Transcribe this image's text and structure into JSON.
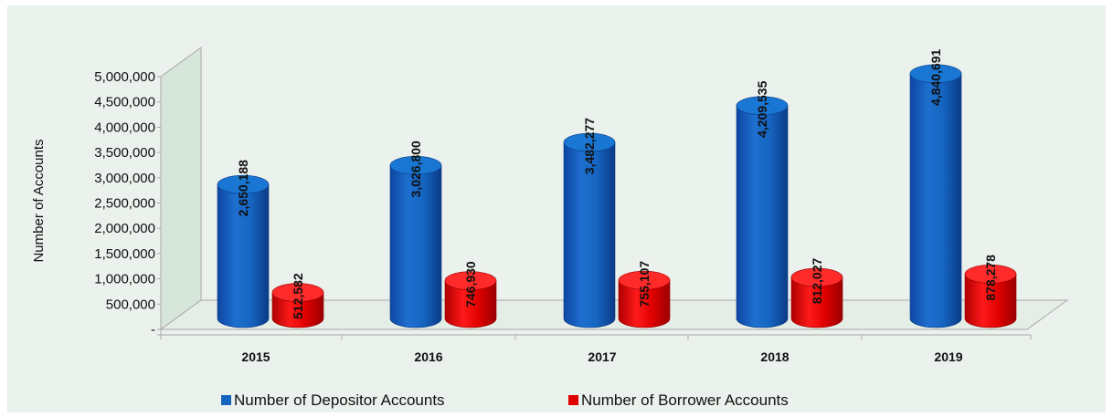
{
  "chart_data": {
    "type": "bar",
    "style": "3d-cylinder",
    "categories": [
      "2015",
      "2016",
      "2017",
      "2018",
      "2019"
    ],
    "series": [
      {
        "name": "Number of Depositor Accounts",
        "color": "#1565c0",
        "values": [
          2650188,
          3026800,
          3482277,
          4209535,
          4840691
        ],
        "labels": [
          "2,650,188",
          "3,026,800",
          "3,482,277",
          "4,209,535",
          "4,840,691"
        ]
      },
      {
        "name": "Number of Borrower Accounts",
        "color": "#e00000",
        "values": [
          512582,
          746930,
          755107,
          812027,
          878278
        ],
        "labels": [
          "512,582",
          "746,930",
          "755,107",
          "812,027",
          "878,278"
        ]
      }
    ],
    "ylabel": "Number of Accounts",
    "ylim": [
      0,
      5000000
    ],
    "yticks": [
      "-",
      "500,000",
      "1,000,000",
      "1,500,000",
      "2,000,000",
      "2,500,000",
      "3,000,000",
      "3,500,000",
      "4,000,000",
      "4,500,000",
      "5,000,000"
    ],
    "grid": false,
    "legend_position": "bottom",
    "background": "#ebf1ec",
    "wall_color": "#d7e6da"
  }
}
